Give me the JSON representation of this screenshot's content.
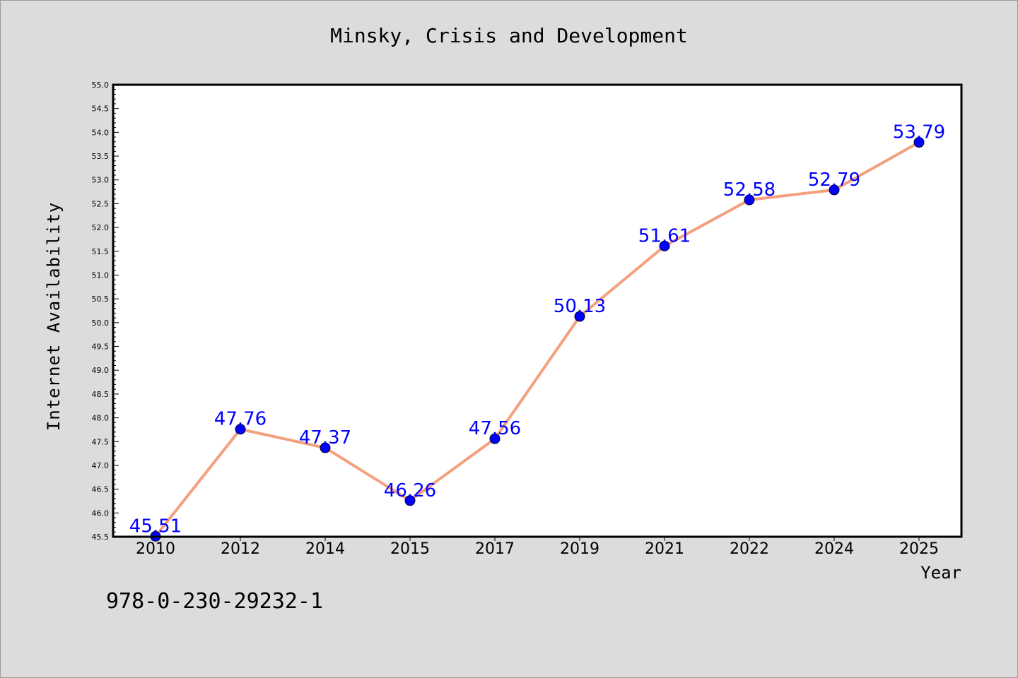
{
  "footer": {
    "code": "978-0-230-29232-1"
  },
  "colors": {
    "line": "#f4a07e",
    "marker": "#0000ff",
    "label": "#0000ff",
    "plot_background": "#ffffff",
    "page_background": "#dcdcdc"
  },
  "chart_data": {
    "type": "line",
    "title": "Minsky, Crisis and Development",
    "xlabel": "Year",
    "ylabel": "Internet Availability",
    "categories": [
      "2010",
      "2012",
      "2014",
      "2015",
      "2017",
      "2019",
      "2021",
      "2022",
      "2024",
      "2025"
    ],
    "series": [
      {
        "values": [
          45.51,
          47.76,
          47.37,
          46.26,
          47.56,
          50.13,
          51.61,
          52.58,
          52.79,
          53.79
        ],
        "labels": [
          "45.51",
          "47.76",
          "47.37",
          "46.26",
          "47.56",
          "50.13",
          "51.61",
          "52.58",
          "52.79",
          "53.79"
        ]
      }
    ],
    "ylim": [
      45.5,
      55.0
    ],
    "yticks": [
      "45.5",
      "46.0",
      "46.5",
      "47.0",
      "47.5",
      "48.0",
      "48.5",
      "49.0",
      "49.5",
      "50.0",
      "50.5",
      "51.0",
      "51.5",
      "52.0",
      "52.5",
      "53.0",
      "53.5",
      "54.0",
      "54.5",
      "55.0"
    ],
    "grid": false,
    "legend": "none"
  }
}
